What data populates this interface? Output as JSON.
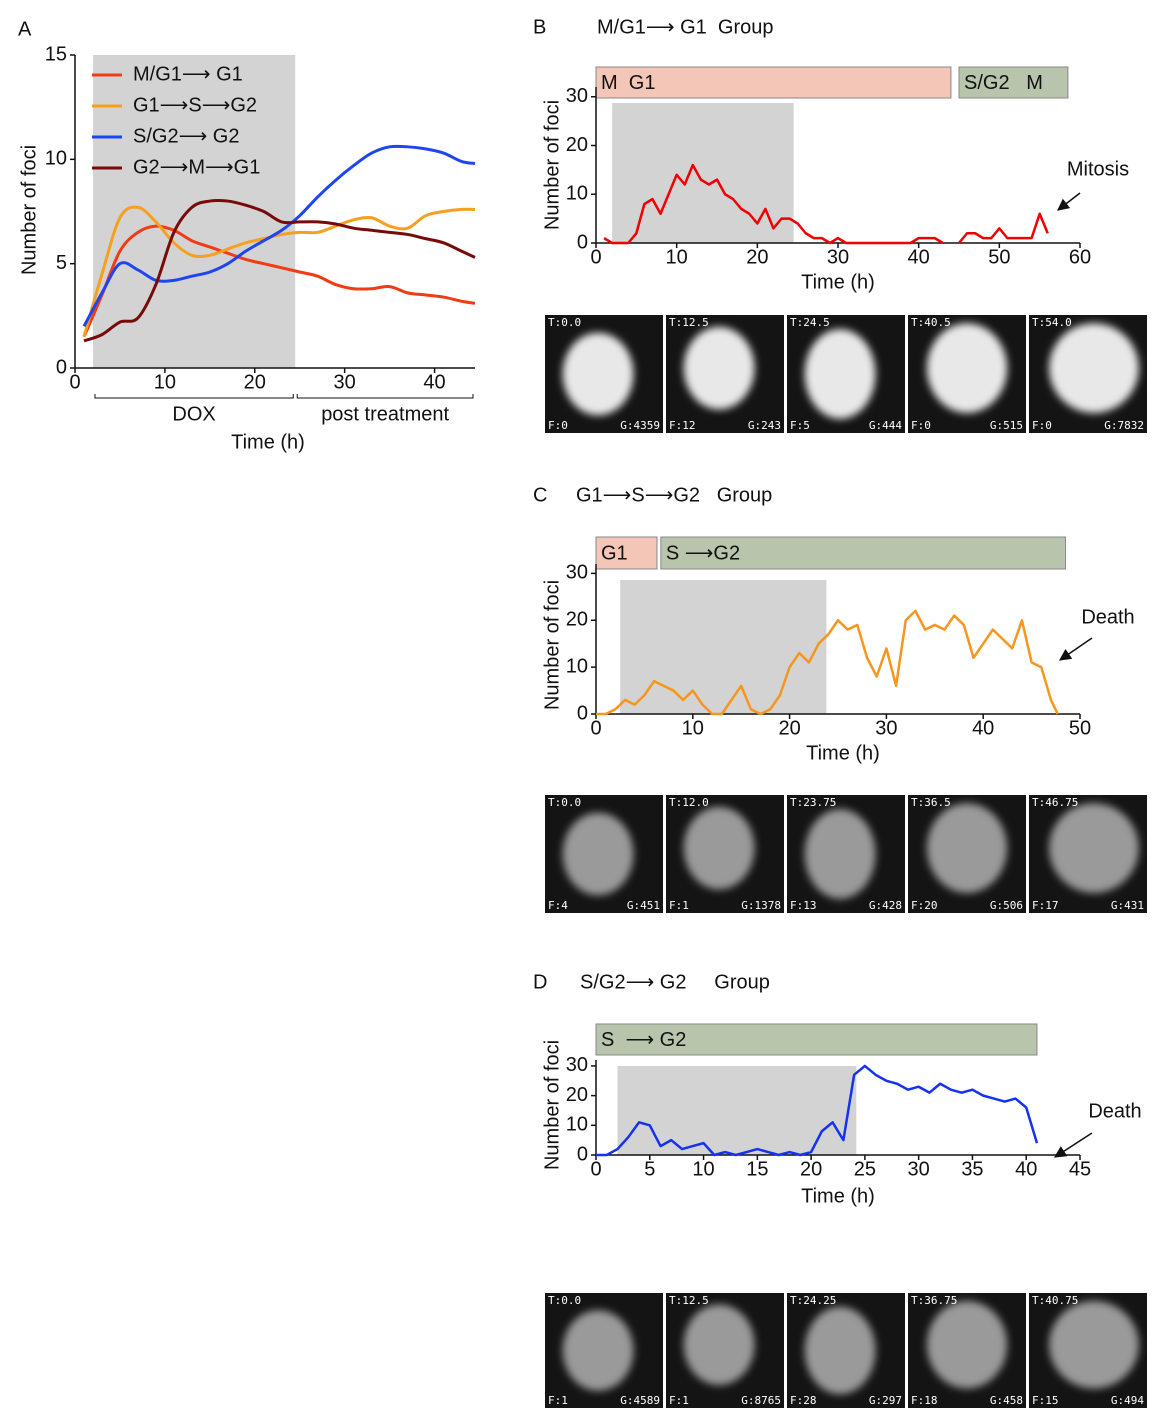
{
  "chart_data": [
    {
      "type": "line",
      "panel": "A",
      "xlabel": "Time (h)",
      "ylabel": "Number of foci",
      "xlim": [
        0,
        44.5
      ],
      "ylim": [
        0,
        15
      ],
      "xticks": [
        0,
        10,
        20,
        30,
        40
      ],
      "yticks": [
        0,
        5,
        10,
        15
      ],
      "shaded_x": [
        2,
        24.5
      ],
      "legend": "upper left",
      "periods": [
        {
          "label": "DOX",
          "range": [
            2,
            24.5
          ]
        },
        {
          "label": "post treatment",
          "range": [
            24.5,
            44.5
          ]
        }
      ],
      "x": [
        1,
        3,
        5,
        7,
        9,
        11,
        13,
        15,
        17,
        19,
        21,
        23,
        25,
        27,
        29,
        31,
        33,
        35,
        37,
        39,
        41,
        43,
        44.5
      ],
      "series": [
        {
          "name": "M/G1⟶ G1",
          "color": "#f03c14",
          "values": [
            1.5,
            3.5,
            5.6,
            6.5,
            6.8,
            6.6,
            6.1,
            5.8,
            5.5,
            5.2,
            5.0,
            4.8,
            4.6,
            4.4,
            4.0,
            3.8,
            3.8,
            3.9,
            3.6,
            3.5,
            3.4,
            3.2,
            3.1
          ]
        },
        {
          "name": "G1⟶S⟶G2",
          "color": "#f5a01e",
          "values": [
            1.5,
            4.5,
            7.2,
            7.7,
            7.0,
            6.0,
            5.4,
            5.4,
            5.7,
            6.0,
            6.2,
            6.4,
            6.5,
            6.5,
            6.8,
            7.1,
            7.2,
            6.8,
            6.7,
            7.3,
            7.5,
            7.6,
            7.6
          ]
        },
        {
          "name": "S/G2⟶ G2",
          "color": "#1e46f0",
          "values": [
            2.0,
            3.6,
            5.0,
            4.7,
            4.2,
            4.2,
            4.4,
            4.6,
            5.0,
            5.6,
            6.1,
            6.6,
            7.3,
            8.2,
            9.0,
            9.7,
            10.3,
            10.6,
            10.6,
            10.5,
            10.3,
            9.9,
            9.8
          ]
        },
        {
          "name": "G2⟶M⟶G1",
          "color": "#780a0a",
          "values": [
            1.3,
            1.6,
            2.2,
            2.4,
            4.0,
            6.5,
            7.7,
            8.0,
            8.0,
            7.8,
            7.5,
            7.0,
            7.0,
            7.0,
            6.9,
            6.7,
            6.6,
            6.5,
            6.4,
            6.2,
            6.0,
            5.6,
            5.3
          ]
        }
      ]
    },
    {
      "type": "line",
      "panel": "B",
      "title": "M/G1⟶ G1  Group",
      "xlabel": "Time (h)",
      "ylabel": "Number of foci",
      "xlim": [
        0,
        60
      ],
      "ylim": [
        0,
        32
      ],
      "xticks": [
        0,
        10,
        20,
        30,
        40,
        50,
        60
      ],
      "yticks": [
        0,
        10,
        20,
        30
      ],
      "shaded_x": [
        2,
        24.5
      ],
      "color": "#f00000",
      "annotation": "Mitosis",
      "phases": [
        {
          "label": "M  G1",
          "range": [
            0,
            44
          ],
          "color": "#f4c6b8"
        },
        {
          "label": "S/G2   M",
          "range": [
            45,
            58.5
          ],
          "color": "#b9c4ad"
        }
      ],
      "x": [
        1,
        2,
        3,
        4,
        5,
        6,
        7,
        8,
        9,
        10,
        11,
        12,
        13,
        14,
        15,
        16,
        17,
        18,
        19,
        20,
        21,
        22,
        23,
        24,
        25,
        26,
        27,
        28,
        29,
        30,
        31,
        32,
        33,
        34,
        35,
        36,
        37,
        38,
        39,
        40,
        41,
        42,
        43,
        44,
        45,
        46,
        47,
        48,
        49,
        50,
        51,
        52,
        53,
        54,
        55,
        56
      ],
      "values": [
        1,
        0,
        0,
        0,
        2,
        8,
        9,
        6,
        10,
        14,
        12,
        16,
        13,
        12,
        13,
        10,
        9,
        7,
        6,
        4,
        7,
        3,
        5,
        5,
        4,
        2,
        1,
        1,
        0,
        1,
        0,
        0,
        0,
        0,
        0,
        0,
        0,
        0,
        0,
        1,
        1,
        1,
        0,
        null,
        0,
        2,
        2,
        1,
        1,
        3,
        1,
        1,
        1,
        1,
        6,
        2
      ],
      "frames": [
        {
          "t": "T:0.0",
          "f": "F:0",
          "g": "G:4359"
        },
        {
          "t": "T:12.5",
          "f": "F:12",
          "g": "G:243"
        },
        {
          "t": "T:24.5",
          "f": "F:5",
          "g": "G:444"
        },
        {
          "t": "T:40.5",
          "f": "F:0",
          "g": "G:515"
        },
        {
          "t": "T:54.0",
          "f": "F:0",
          "g": "G:7832"
        }
      ]
    },
    {
      "type": "line",
      "panel": "C",
      "title": "G1⟶S⟶G2   Group",
      "xlabel": "Time (h)",
      "ylabel": "Number of foci",
      "xlim": [
        0,
        50
      ],
      "ylim": [
        0,
        32
      ],
      "xticks": [
        0,
        10,
        20,
        30,
        40,
        50
      ],
      "yticks": [
        0,
        10,
        20,
        30
      ],
      "shaded_x": [
        2.5,
        23.8
      ],
      "color": "#f5961e",
      "annotation": "Death",
      "phases": [
        {
          "label": "G1",
          "range": [
            0,
            6.3
          ],
          "color": "#f4c6b8"
        },
        {
          "label": "S ⟶G2",
          "range": [
            6.7,
            48.5
          ],
          "color": "#b9c4ad"
        }
      ],
      "x": [
        0,
        1,
        2,
        3,
        4,
        5,
        6,
        7,
        8,
        9,
        10,
        11,
        12,
        13,
        14,
        15,
        16,
        17,
        18,
        19,
        20,
        21,
        22,
        23,
        24,
        25,
        26,
        27,
        28,
        29,
        30,
        31,
        32,
        33,
        34,
        35,
        36,
        37,
        38,
        39,
        40,
        41,
        42,
        43,
        44,
        45,
        46,
        47,
        47.7
      ],
      "values": [
        0,
        0,
        1,
        3,
        2,
        4,
        7,
        6,
        5,
        3,
        5,
        2,
        0,
        0,
        3,
        6,
        1,
        0,
        1,
        4,
        10,
        13,
        11,
        15,
        17,
        20,
        18,
        19,
        12,
        8,
        14,
        6,
        20,
        22,
        18,
        19,
        18,
        21,
        19,
        12,
        15,
        18,
        16,
        14,
        20,
        11,
        10,
        3,
        0
      ],
      "frames": [
        {
          "t": "T:0.0",
          "f": "F:4",
          "g": "G:451"
        },
        {
          "t": "T:12.0",
          "f": "F:1",
          "g": "G:1378"
        },
        {
          "t": "T:23.75",
          "f": "F:13",
          "g": "G:428"
        },
        {
          "t": "T:36.5",
          "f": "F:20",
          "g": "G:506"
        },
        {
          "t": "T:46.75",
          "f": "F:17",
          "g": "G:431"
        }
      ]
    },
    {
      "type": "line",
      "panel": "D",
      "title": "S/G2⟶ G2     Group",
      "xlabel": "Time (h)",
      "ylabel": "Number of foci",
      "xlim": [
        0,
        45
      ],
      "ylim": [
        0,
        32
      ],
      "xticks": [
        0,
        5,
        10,
        15,
        20,
        25,
        30,
        35,
        40,
        45
      ],
      "yticks": [
        0,
        10,
        20,
        30
      ],
      "shaded_x": [
        2,
        24.2
      ],
      "color": "#1432f0",
      "annotation": "Death",
      "phases": [
        {
          "label": "S  ⟶ G2",
          "range": [
            0,
            41
          ],
          "color": "#b9c4ad"
        }
      ],
      "x": [
        0,
        1,
        2,
        3,
        4,
        5,
        6,
        7,
        8,
        9,
        10,
        11,
        12,
        13,
        14,
        15,
        16,
        17,
        18,
        19,
        20,
        21,
        22,
        23,
        24,
        25,
        26,
        27,
        28,
        29,
        30,
        31,
        32,
        33,
        34,
        35,
        36,
        37,
        38,
        39,
        40,
        41
      ],
      "values": [
        0,
        0,
        2,
        6,
        11,
        10,
        3,
        5,
        2,
        3,
        4,
        0,
        1,
        0,
        1,
        2,
        1,
        0,
        1,
        0,
        1,
        8,
        11,
        5,
        27,
        30,
        27,
        25,
        24,
        22,
        23,
        21,
        24,
        22,
        21,
        22,
        20,
        19,
        18,
        19,
        16,
        4
      ],
      "frames": [
        {
          "t": "T:0.0",
          "f": "F:1",
          "g": "G:4589"
        },
        {
          "t": "T:12.5",
          "f": "F:1",
          "g": "G:8765"
        },
        {
          "t": "T:24.25",
          "f": "F:28",
          "g": "G:297"
        },
        {
          "t": "T:36.75",
          "f": "F:18",
          "g": "G:458"
        },
        {
          "t": "T:40.75",
          "f": "F:15",
          "g": "G:494"
        }
      ]
    }
  ]
}
